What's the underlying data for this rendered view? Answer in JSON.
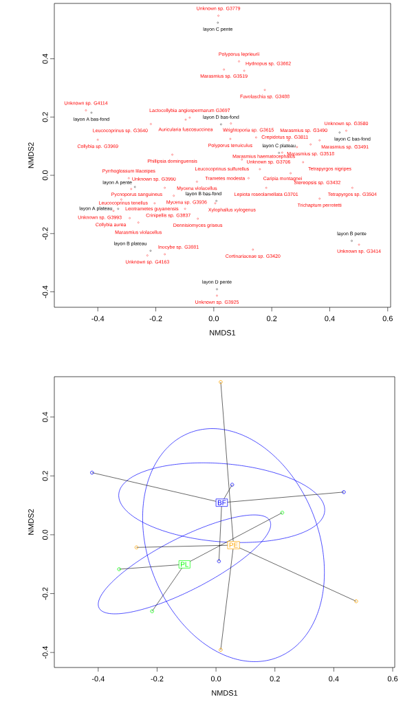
{
  "chart_data": [
    {
      "type": "scatter",
      "xlabel": "NMDS1",
      "ylabel": "NMDS2",
      "xlim": [
        -0.55,
        0.61
      ],
      "ylim": [
        -0.453,
        0.59
      ],
      "xticks": [
        -0.4,
        -0.2,
        {
          "value": 0,
          "label": "0.0"
        },
        0.2,
        0.4,
        0.6
      ],
      "yticks": [
        -0.4,
        -0.2,
        {
          "value": 0,
          "label": "0.0"
        },
        0.2,
        0.4
      ],
      "series": [
        {
          "color": "#ff0000",
          "marker": "circle",
          "x": [
            0.016,
            0.087,
            0.035,
            0.105,
            0.176,
            -0.441,
            -0.083,
            -0.097,
            -0.217,
            0.059,
            0.457,
            -0.4,
            0.057,
            0.146,
            0.258,
            0.365,
            0.334,
            0.287,
            0.236,
            -0.143,
            0.097,
            0.308,
            0.159,
            0.265,
            -0.293,
            -0.058,
            0.12,
            -0.285,
            -0.169,
            0.181,
            0.478,
            -0.138,
            0.365,
            -0.319,
            -0.204,
            0.005,
            -0.099,
            -0.346,
            -0.29,
            -0.055,
            -0.26,
            0.135,
            -0.229,
            -0.169,
            0.501,
            0.011
          ],
          "values": [
            0.548,
            0.391,
            0.363,
            0.359,
            0.293,
            0.223,
            0.198,
            0.191,
            0.176,
            0.178,
            0.153,
            0.122,
            0.125,
            0.13,
            0.12,
            0.12,
            0.106,
            0.097,
            0.078,
            0.071,
            0.054,
            0.045,
            0.021,
            0.007,
            -0.01,
            -0.022,
            -0.01,
            -0.047,
            -0.043,
            -0.043,
            -0.043,
            -0.07,
            -0.08,
            -0.083,
            -0.096,
            -0.096,
            -0.115,
            -0.122,
            -0.147,
            -0.149,
            -0.162,
            -0.255,
            -0.275,
            -0.271,
            -0.238,
            -0.413
          ],
          "value_labels": [
            "Unknown sp. G3779",
            "Polyporus leprieurii",
            "Marasmius sp. G3519",
            "Hydnopus sp. G3662",
            "Favolaschia sp. G3488",
            "Unknown sp. G4114",
            "Lactocollybia angiospermarum G3697",
            "Auricularia fuscosuccinea",
            "Leucocoprinus sp. G3640",
            "Wrightoporia sp. G3615",
            "Unknown sp. G3580",
            "Collybia sp. G3969",
            "Polyporus tenuiculus",
            "Crepidotus sp. G3811",
            "Marasmius sp. G3490",
            "Marasmius sp. G3491",
            "Marasmius sp. G3518",
            "Marasmius haematocephalus",
            "Unknown sp. G3706",
            "Phillipsia dominguensis",
            "Leucocoprinus sulfurellus",
            "Tetrapyrgos nigripes",
            "Caripia montagnei",
            "Stereopsis sp. G3432",
            "Pyrrhoglossum lilaceipes",
            "Mycena violacellus",
            "Trametes modesta",
            "Unknown sp. G3990",
            "Pycnoporus sanguineus",
            "Lepiota roseolamellata G3701",
            "Tetrapyrgos sp. G3504",
            "Mycena sp. G3936",
            "Trichaptum perrotetti",
            "Leiotrametes guyanensis",
            "Leucocoprinus tenellus",
            "Xylophallus xylogenus",
            "Crinipellis sp. G3837",
            "Unknown sp. G3993",
            "Collybia aurea",
            "Dennisiomyces griseus",
            "Marasmius violacellus",
            "Cortinariaceae sp. G3420",
            "Unknown sp. G4163",
            "Inocybe sp. G3881",
            "Unknown sp. G3414",
            "Unknown sp. G3925"
          ]
        },
        {
          "color": "#000000",
          "marker": "circle",
          "x": [
            0.014,
            -0.422,
            0.025,
            0.434,
            0.225,
            -0.272,
            0.009,
            -0.33,
            -0.218,
            0.476,
            0.011
          ],
          "values": [
            0.524,
            0.215,
            0.175,
            0.147,
            0.077,
            -0.04,
            -0.088,
            -0.115,
            -0.259,
            -0.225,
            -0.391
          ],
          "value_labels": [
            "layon C pente",
            "layon A bas-fond",
            "layon D bas-fond",
            "layon C bas-fond",
            "layon C plateau",
            "layon A pente",
            "layon B bas-fond",
            "layon A plateau",
            "layon B plateau",
            "layon B pente",
            "layon D pente"
          ]
        }
      ]
    },
    {
      "type": "scatter",
      "xlabel": "NMDS1",
      "ylabel": "NMDS2",
      "xlim": [
        -0.549,
        0.607
      ],
      "ylim": [
        -0.451,
        0.537
      ],
      "xticks": [
        -0.4,
        -0.2,
        {
          "value": 0,
          "label": "0.0"
        },
        0.2,
        0.4,
        0.6
      ],
      "yticks": [
        -0.4,
        -0.2,
        {
          "value": 0,
          "label": "0.0"
        },
        0.2,
        0.4
      ],
      "series": [
        {
          "name": "BF",
          "color": "#0000ff",
          "marker": "circle",
          "x": [
            -0.421,
            0.055,
            0.434,
            0.01
          ],
          "values": [
            0.211,
            0.17,
            0.145,
            -0.09
          ]
        },
        {
          "name": "PE",
          "color": "#ffa500",
          "marker": "circle",
          "x": [
            0.016,
            -0.27,
            0.476,
            0.016
          ],
          "values": [
            0.519,
            -0.043,
            -0.226,
            -0.391
          ]
        },
        {
          "name": "PL",
          "color": "#00ff00",
          "marker": "circle",
          "x": [
            0.225,
            -0.329,
            -0.217
          ],
          "values": [
            0.075,
            -0.117,
            -0.26
          ]
        }
      ]
    }
  ]
}
